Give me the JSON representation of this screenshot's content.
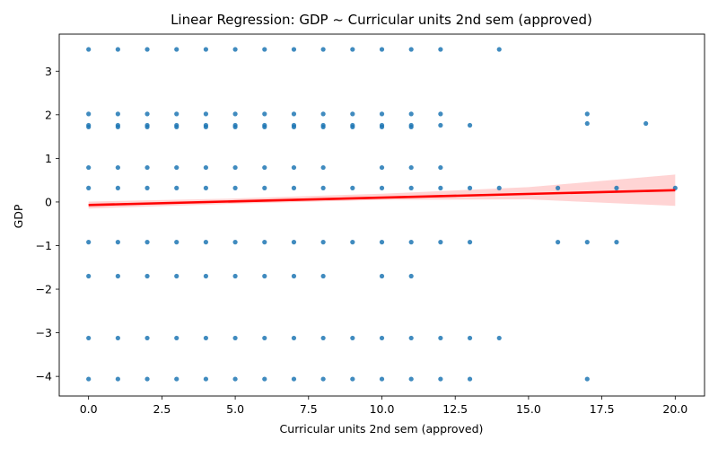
{
  "chart_data": {
    "type": "scatter",
    "title": "Linear Regression: GDP ~ Curricular units 2nd sem (approved)",
    "xlabel": "Curricular units 2nd sem (approved)",
    "ylabel": "GDP",
    "xlim": [
      -1,
      21
    ],
    "ylim": [
      -4.45,
      3.85
    ],
    "xticks": [
      0.0,
      2.5,
      5.0,
      7.5,
      10.0,
      12.5,
      15.0,
      17.5,
      20.0
    ],
    "xtick_labels": [
      "0.0",
      "2.5",
      "5.0",
      "7.5",
      "10.0",
      "12.5",
      "15.0",
      "17.5",
      "20.0"
    ],
    "yticks": [
      -4,
      -3,
      -2,
      -1,
      0,
      1,
      2,
      3
    ],
    "ytick_labels": [
      "−4",
      "−3",
      "−2",
      "−1",
      "0",
      "1",
      "2",
      "3"
    ],
    "grid": false,
    "colors": {
      "points": "#1f77b4",
      "regression_line": "#ff0000",
      "confidence_band": "#ffcccc"
    },
    "regression": {
      "x": [
        0,
        20
      ],
      "y": [
        -0.07,
        0.27
      ]
    },
    "confidence_band": {
      "x": [
        0,
        5,
        10,
        15,
        20
      ],
      "lower": [
        -0.15,
        -0.04,
        0.05,
        0.06,
        -0.09
      ],
      "upper": [
        0.01,
        0.08,
        0.19,
        0.34,
        0.63
      ]
    },
    "points": {
      "x": [
        0,
        1,
        2,
        3,
        4,
        5,
        6,
        7,
        8,
        9,
        10,
        11,
        12,
        14,
        0,
        1,
        2,
        3,
        4,
        5,
        6,
        7,
        8,
        9,
        10,
        11,
        12,
        17,
        0,
        1,
        2,
        3,
        4,
        5,
        6,
        7,
        8,
        9,
        10,
        11,
        12,
        13,
        17,
        19,
        0,
        1,
        2,
        3,
        4,
        5,
        6,
        7,
        8,
        9,
        10,
        11,
        0,
        1,
        2,
        3,
        4,
        5,
        6,
        7,
        8,
        10,
        11,
        12,
        0,
        1,
        2,
        3,
        4,
        5,
        6,
        7,
        8,
        9,
        10,
        11,
        12,
        13,
        14,
        16,
        18,
        20,
        0,
        1,
        2,
        3,
        4,
        5,
        6,
        7,
        8,
        9,
        10,
        11,
        12,
        13,
        16,
        17,
        18,
        0,
        1,
        2,
        3,
        4,
        5,
        6,
        7,
        8,
        10,
        11,
        0,
        1,
        2,
        3,
        4,
        5,
        6,
        7,
        8,
        9,
        10,
        11,
        12,
        13,
        14,
        0,
        1,
        2,
        3,
        4,
        5,
        6,
        7,
        8,
        9,
        10,
        11,
        12,
        13,
        17
      ],
      "y": [
        3.5,
        3.5,
        3.5,
        3.5,
        3.5,
        3.5,
        3.5,
        3.5,
        3.5,
        3.5,
        3.5,
        3.5,
        3.5,
        3.5,
        2.02,
        2.02,
        2.02,
        2.02,
        2.02,
        2.02,
        2.02,
        2.02,
        2.02,
        2.02,
        2.02,
        2.02,
        2.02,
        2.02,
        1.76,
        1.76,
        1.76,
        1.76,
        1.76,
        1.76,
        1.76,
        1.76,
        1.76,
        1.76,
        1.76,
        1.76,
        1.76,
        1.76,
        1.8,
        1.8,
        1.72,
        1.72,
        1.72,
        1.72,
        1.72,
        1.72,
        1.72,
        1.72,
        1.72,
        1.72,
        1.72,
        1.72,
        0.79,
        0.79,
        0.79,
        0.79,
        0.79,
        0.79,
        0.79,
        0.79,
        0.79,
        0.79,
        0.79,
        0.79,
        0.32,
        0.32,
        0.32,
        0.32,
        0.32,
        0.32,
        0.32,
        0.32,
        0.32,
        0.32,
        0.32,
        0.32,
        0.32,
        0.32,
        0.32,
        0.32,
        0.32,
        0.32,
        -0.92,
        -0.92,
        -0.92,
        -0.92,
        -0.92,
        -0.92,
        -0.92,
        -0.92,
        -0.92,
        -0.92,
        -0.92,
        -0.92,
        -0.92,
        -0.92,
        -0.92,
        -0.92,
        -0.92,
        -1.7,
        -1.7,
        -1.7,
        -1.7,
        -1.7,
        -1.7,
        -1.7,
        -1.7,
        -1.7,
        -1.7,
        -1.7,
        -3.12,
        -3.12,
        -3.12,
        -3.12,
        -3.12,
        -3.12,
        -3.12,
        -3.12,
        -3.12,
        -3.12,
        -3.12,
        -3.12,
        -3.12,
        -3.12,
        -3.12,
        -4.06,
        -4.06,
        -4.06,
        -4.06,
        -4.06,
        -4.06,
        -4.06,
        -4.06,
        -4.06,
        -4.06,
        -4.06,
        -4.06,
        -4.06,
        -4.06,
        -4.06
      ]
    }
  }
}
